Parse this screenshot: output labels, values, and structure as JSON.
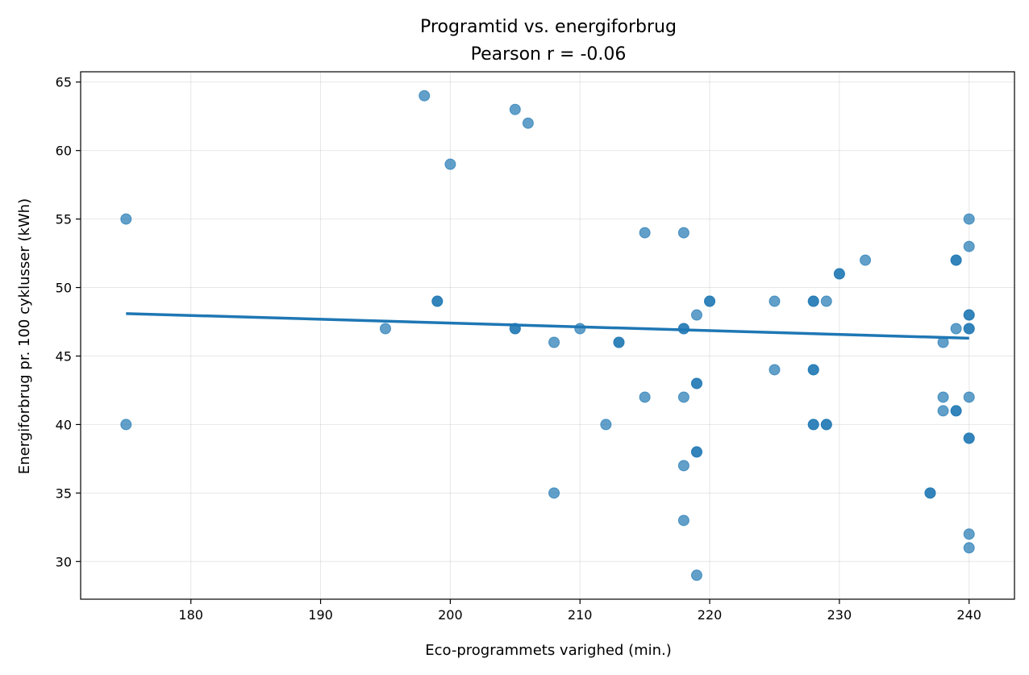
{
  "chart_data": {
    "type": "scatter",
    "title": "Programtid vs. energiforbrug",
    "subtitle": "Pearson r = -0.06",
    "xlabel": "Eco-programmets varighed (min.)",
    "ylabel": "Energiforbrug pr. 100 cyklusser (kWh)",
    "xlim": [
      171.5,
      243.5
    ],
    "ylim": [
      27.25,
      65.75
    ],
    "xticks": [
      180,
      190,
      200,
      210,
      220,
      230,
      240
    ],
    "yticks": [
      30,
      35,
      40,
      45,
      50,
      55,
      60,
      65
    ],
    "grid": true,
    "point_color": "#1f77b4",
    "trend_color": "#1f77b4",
    "points": [
      {
        "x": 175,
        "y": 55
      },
      {
        "x": 175,
        "y": 40
      },
      {
        "x": 195,
        "y": 47
      },
      {
        "x": 198,
        "y": 64
      },
      {
        "x": 199,
        "y": 49
      },
      {
        "x": 199,
        "y": 49
      },
      {
        "x": 200,
        "y": 59
      },
      {
        "x": 205,
        "y": 63
      },
      {
        "x": 205,
        "y": 47
      },
      {
        "x": 205,
        "y": 47
      },
      {
        "x": 206,
        "y": 62
      },
      {
        "x": 208,
        "y": 46
      },
      {
        "x": 208,
        "y": 35
      },
      {
        "x": 210,
        "y": 47
      },
      {
        "x": 212,
        "y": 40
      },
      {
        "x": 213,
        "y": 46
      },
      {
        "x": 213,
        "y": 46
      },
      {
        "x": 215,
        "y": 54
      },
      {
        "x": 215,
        "y": 42
      },
      {
        "x": 218,
        "y": 54
      },
      {
        "x": 218,
        "y": 47
      },
      {
        "x": 218,
        "y": 47
      },
      {
        "x": 218,
        "y": 42
      },
      {
        "x": 218,
        "y": 37
      },
      {
        "x": 218,
        "y": 33
      },
      {
        "x": 219,
        "y": 48
      },
      {
        "x": 219,
        "y": 43
      },
      {
        "x": 219,
        "y": 43
      },
      {
        "x": 219,
        "y": 38
      },
      {
        "x": 219,
        "y": 38
      },
      {
        "x": 219,
        "y": 29
      },
      {
        "x": 220,
        "y": 49
      },
      {
        "x": 220,
        "y": 49
      },
      {
        "x": 225,
        "y": 49
      },
      {
        "x": 225,
        "y": 44
      },
      {
        "x": 228,
        "y": 49
      },
      {
        "x": 228,
        "y": 49
      },
      {
        "x": 228,
        "y": 44
      },
      {
        "x": 228,
        "y": 44
      },
      {
        "x": 228,
        "y": 40
      },
      {
        "x": 228,
        "y": 40
      },
      {
        "x": 229,
        "y": 49
      },
      {
        "x": 229,
        "y": 40
      },
      {
        "x": 229,
        "y": 40
      },
      {
        "x": 230,
        "y": 51
      },
      {
        "x": 230,
        "y": 51
      },
      {
        "x": 232,
        "y": 52
      },
      {
        "x": 237,
        "y": 35
      },
      {
        "x": 237,
        "y": 35
      },
      {
        "x": 238,
        "y": 46
      },
      {
        "x": 238,
        "y": 42
      },
      {
        "x": 238,
        "y": 41
      },
      {
        "x": 239,
        "y": 52
      },
      {
        "x": 239,
        "y": 52
      },
      {
        "x": 239,
        "y": 47
      },
      {
        "x": 239,
        "y": 41
      },
      {
        "x": 239,
        "y": 41
      },
      {
        "x": 240,
        "y": 55
      },
      {
        "x": 240,
        "y": 53
      },
      {
        "x": 240,
        "y": 48
      },
      {
        "x": 240,
        "y": 48
      },
      {
        "x": 240,
        "y": 47
      },
      {
        "x": 240,
        "y": 47
      },
      {
        "x": 240,
        "y": 42
      },
      {
        "x": 240,
        "y": 39
      },
      {
        "x": 240,
        "y": 39
      },
      {
        "x": 240,
        "y": 32
      },
      {
        "x": 240,
        "y": 31
      }
    ],
    "trend_line": {
      "x": [
        175,
        240
      ],
      "y": [
        48.1,
        46.3
      ]
    }
  }
}
